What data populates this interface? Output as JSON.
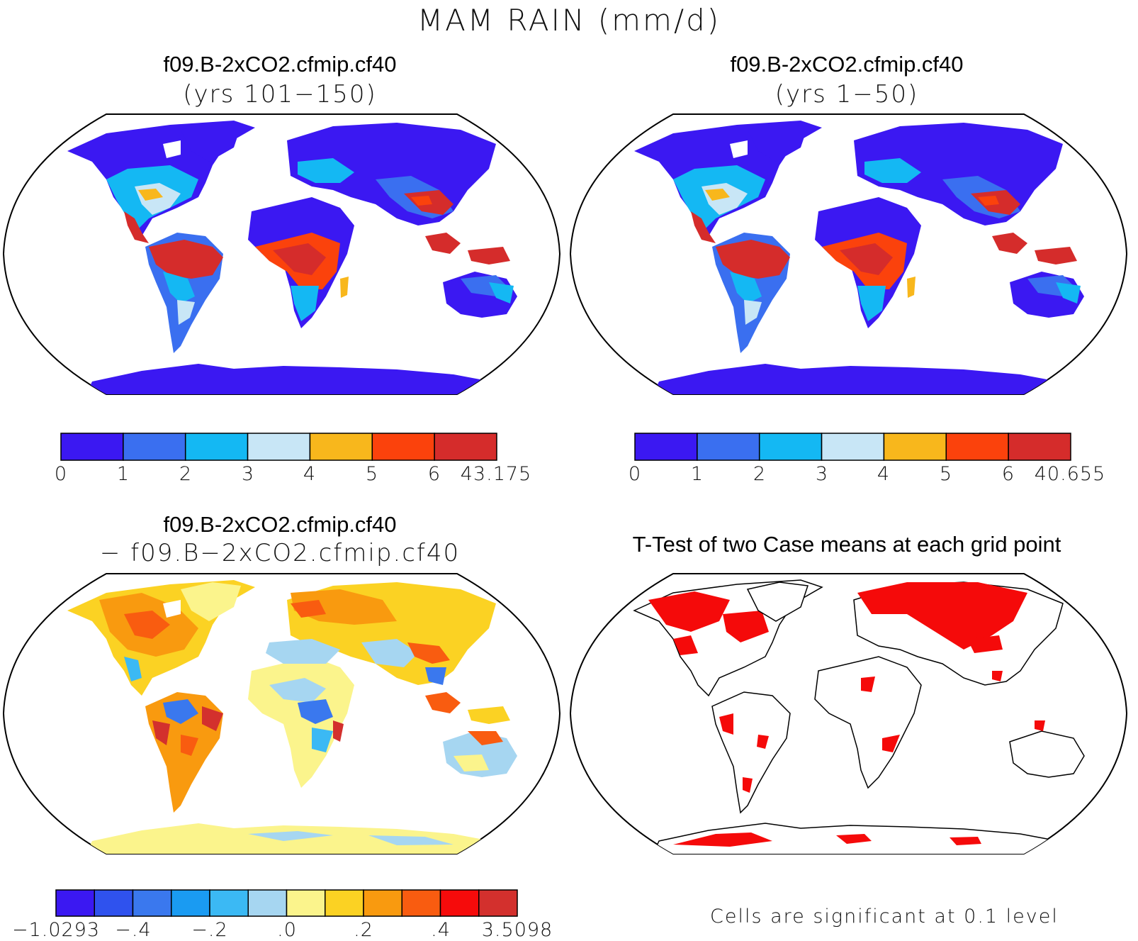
{
  "main_title": "MAM RAIN (mm/d)",
  "panels": [
    {
      "title": "f09.B-2xCO2.cfmip.cf40",
      "subtitle": "(yrs 101−150)",
      "colorbar": {
        "colors": [
          "#3b18f2",
          "#3a6ff0",
          "#14b8f3",
          "#c8e6f6",
          "#f8b71c",
          "#fb420c",
          "#d52c2b"
        ],
        "labels": [
          "0",
          "1",
          "2",
          "3",
          "4",
          "5",
          "6",
          "43.175"
        ]
      }
    },
    {
      "title": "f09.B-2xCO2.cfmip.cf40",
      "subtitle": "(yrs 1−50)",
      "colorbar": {
        "colors": [
          "#3b18f2",
          "#3a6ff0",
          "#14b8f3",
          "#c8e6f6",
          "#f8b71c",
          "#fb420c",
          "#d52c2b"
        ],
        "labels": [
          "0",
          "1",
          "2",
          "3",
          "4",
          "5",
          "6",
          "40.655"
        ]
      }
    },
    {
      "title": "f09.B-2xCO2.cfmip.cf40",
      "subtitle": "− f09.B−2xCO2.cfmip.cf40",
      "colorbar": {
        "colors": [
          "#3b18f2",
          "#2f52ee",
          "#3a78ee",
          "#1a9bf2",
          "#3bb9f4",
          "#a6d6f1",
          "#fbf48c",
          "#fbd223",
          "#f99a0f",
          "#f95c10",
          "#f60b0b",
          "#d3302d"
        ],
        "labels": [
          "−1.0293",
          "−.4",
          "−.2",
          ".0",
          ".2",
          ".4",
          "3.5098"
        ]
      }
    },
    {
      "title": "T-Test of two Case means at each grid point",
      "note": "Cells are significant at 0.1 level",
      "significance_color": "#f50a0a"
    }
  ]
}
